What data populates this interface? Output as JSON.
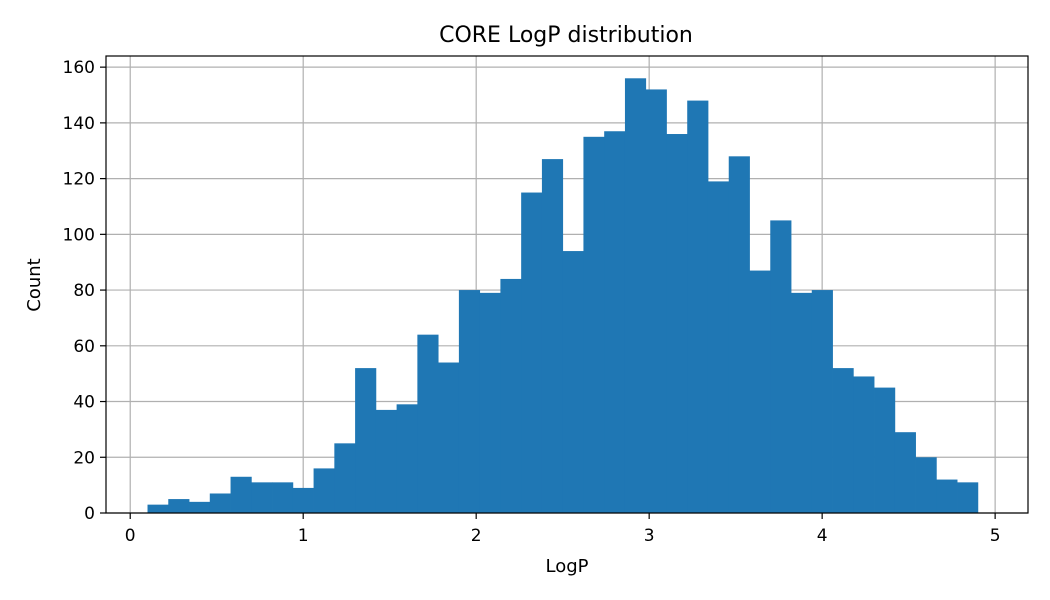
{
  "chart_data": {
    "type": "bar",
    "title": "CORE LogP distribution",
    "xlabel": "LogP",
    "ylabel": "Count",
    "xlim": [
      -0.14,
      5.19
    ],
    "ylim": [
      0,
      164
    ],
    "xticks": [
      0,
      1,
      2,
      3,
      4,
      5
    ],
    "yticks": [
      0,
      20,
      40,
      60,
      80,
      100,
      120,
      140,
      160
    ],
    "grid": true,
    "bar_color": "#1f77b4",
    "bin_start": 0.1,
    "bin_width": 0.12,
    "values": [
      3,
      5,
      4,
      7,
      13,
      11,
      11,
      9,
      16,
      25,
      52,
      37,
      39,
      64,
      54,
      80,
      79,
      84,
      115,
      127,
      94,
      135,
      137,
      156,
      152,
      136,
      148,
      119,
      128,
      87,
      105,
      79,
      80,
      52,
      49,
      45,
      29,
      20,
      12,
      11
    ]
  }
}
